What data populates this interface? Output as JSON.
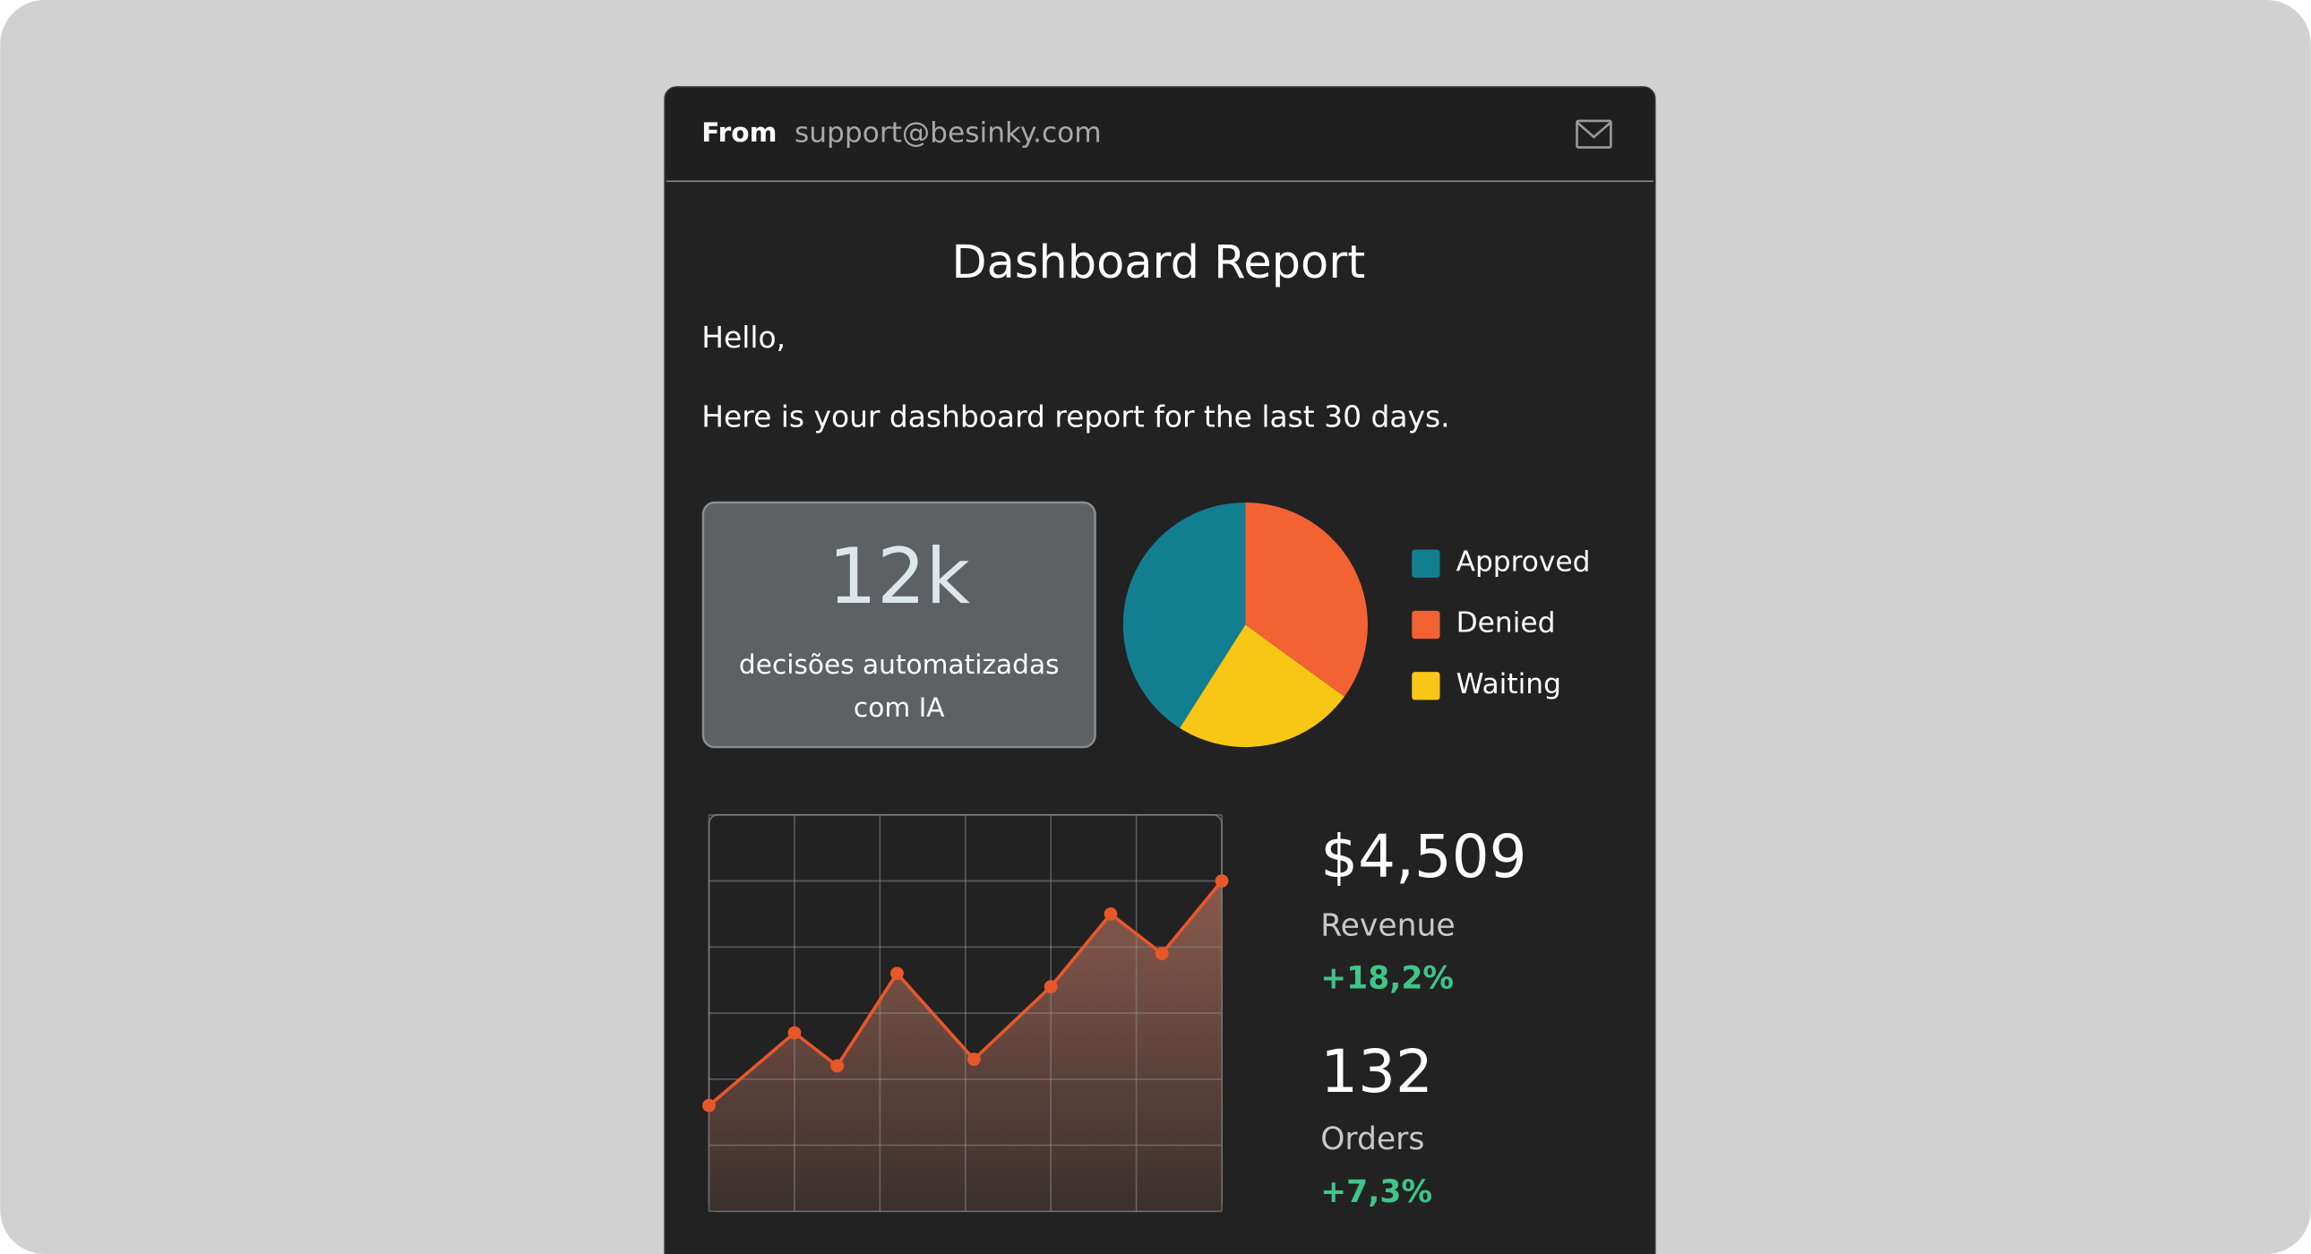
{
  "header": {
    "from_label": "From",
    "sender": "support@besinky.com"
  },
  "title": "Dashboard Report",
  "greeting": "Hello,",
  "intro": "Here is your dashboard report for the last 30 days.",
  "highlight": {
    "value": "12k",
    "caption_lines": [
      "decisões automatizadas",
      "com IA"
    ]
  },
  "stats": [
    {
      "value": "$4,509",
      "label": "Revenue",
      "change": "+18,2%"
    },
    {
      "value": "132",
      "label": "Orders",
      "change": "+7,3%"
    }
  ],
  "chart_data": [
    {
      "type": "pie",
      "categories": [
        "Approved",
        "Denied",
        "Waiting"
      ],
      "values": [
        41,
        35,
        24
      ],
      "colors": [
        "#127f91",
        "#f26232",
        "#f8c715"
      ]
    },
    {
      "type": "area",
      "x": [
        0,
        1,
        1.5,
        2.2,
        3.1,
        4,
        4.7,
        5.3,
        6
      ],
      "values": [
        1.6,
        2.7,
        2.2,
        3.6,
        2.3,
        3.4,
        4.5,
        3.9,
        5.0
      ],
      "color": "#e8572a",
      "xlim": [
        0,
        6
      ],
      "ylim": [
        0,
        6
      ],
      "xticks": [
        0,
        1,
        2,
        3,
        4,
        5,
        6
      ],
      "yticks": [
        0,
        1,
        2,
        3,
        4,
        5,
        6
      ],
      "grid": true
    }
  ]
}
